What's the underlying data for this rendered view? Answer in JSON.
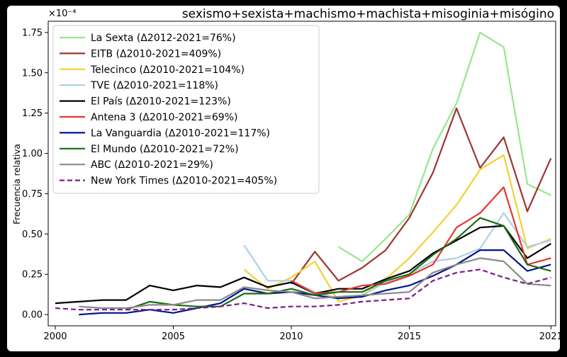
{
  "chart_data": {
    "type": "line",
    "title": "sexismo+sexista+machismo+machista+misoginia+misógino",
    "ylabel": "Frecuencia relativa",
    "xlabel": "",
    "y_exponent_label": "×10⁻⁴",
    "xlim": [
      1999.7,
      2021.2
    ],
    "ylim": [
      -0.07,
      1.82
    ],
    "x_ticks": [
      2000,
      2005,
      2010,
      2015,
      2021
    ],
    "x_tick_labels": [
      "2000",
      "2005",
      "2010",
      "2015",
      "2021"
    ],
    "y_ticks": [
      0.0,
      0.25,
      0.5,
      0.75,
      1.0,
      1.25,
      1.5,
      1.75
    ],
    "y_tick_labels": [
      "0.00",
      "0.25",
      "0.50",
      "0.75",
      "1.00",
      "1.25",
      "1.50",
      "1.75"
    ],
    "grid": false,
    "legend_position": "upper-left",
    "series": [
      {
        "name": "La Sexta (Δ2012-2021=76%)",
        "color": "#98e58c",
        "dash": false,
        "points": [
          [
            2012,
            0.42
          ],
          [
            2013,
            0.33
          ],
          [
            2014,
            0.47
          ],
          [
            2015,
            0.62
          ],
          [
            2016,
            1.03
          ],
          [
            2017,
            1.31
          ],
          [
            2018,
            1.75
          ],
          [
            2019,
            1.66
          ],
          [
            2020,
            0.81
          ],
          [
            2021,
            0.74
          ]
        ]
      },
      {
        "name": "EITB (Δ2010-2021=409%)",
        "color": "#9b3530",
        "dash": false,
        "points": [
          [
            2010,
            0.19
          ],
          [
            2011,
            0.39
          ],
          [
            2012,
            0.21
          ],
          [
            2013,
            0.29
          ],
          [
            2014,
            0.4
          ],
          [
            2015,
            0.6
          ],
          [
            2016,
            0.88
          ],
          [
            2017,
            1.28
          ],
          [
            2018,
            0.91
          ],
          [
            2019,
            1.1
          ],
          [
            2020,
            0.64
          ],
          [
            2021,
            0.97
          ]
        ]
      },
      {
        "name": "Telecinco (Δ2010-2021=104%)",
        "color": "#f5d033",
        "dash": false,
        "points": [
          [
            2008,
            0.28
          ],
          [
            2009,
            0.16
          ],
          [
            2010,
            0.23
          ],
          [
            2011,
            0.33
          ],
          [
            2012,
            0.08
          ],
          [
            2013,
            0.12
          ],
          [
            2014,
            0.22
          ],
          [
            2015,
            0.35
          ],
          [
            2016,
            0.51
          ],
          [
            2017,
            0.68
          ],
          [
            2018,
            0.9
          ],
          [
            2019,
            0.99
          ],
          [
            2020,
            0.41
          ],
          [
            2021,
            0.47
          ]
        ]
      },
      {
        "name": "TVE (Δ2010-2021=118%)",
        "color": "#a9d1e5",
        "dash": false,
        "points": [
          [
            2008,
            0.43
          ],
          [
            2009,
            0.21
          ],
          [
            2010,
            0.21
          ],
          [
            2011,
            0.14
          ],
          [
            2012,
            0.1
          ],
          [
            2013,
            0.12
          ],
          [
            2014,
            0.2
          ],
          [
            2015,
            0.25
          ],
          [
            2016,
            0.33
          ],
          [
            2017,
            0.35
          ],
          [
            2018,
            0.41
          ],
          [
            2019,
            0.63
          ],
          [
            2020,
            0.42
          ],
          [
            2021,
            0.46
          ]
        ]
      },
      {
        "name": "El País (Δ2010-2021=123%)",
        "color": "#000000",
        "dash": false,
        "points": [
          [
            2000,
            0.07
          ],
          [
            2001,
            0.08
          ],
          [
            2002,
            0.09
          ],
          [
            2003,
            0.09
          ],
          [
            2004,
            0.18
          ],
          [
            2005,
            0.15
          ],
          [
            2006,
            0.18
          ],
          [
            2007,
            0.17
          ],
          [
            2008,
            0.23
          ],
          [
            2009,
            0.17
          ],
          [
            2010,
            0.2
          ],
          [
            2011,
            0.13
          ],
          [
            2012,
            0.16
          ],
          [
            2013,
            0.16
          ],
          [
            2014,
            0.22
          ],
          [
            2015,
            0.27
          ],
          [
            2016,
            0.38
          ],
          [
            2017,
            0.46
          ],
          [
            2018,
            0.54
          ],
          [
            2019,
            0.55
          ],
          [
            2020,
            0.35
          ],
          [
            2021,
            0.44
          ]
        ]
      },
      {
        "name": "Antena 3 (Δ2010-2021=69%)",
        "color": "#e5372d",
        "dash": false,
        "points": [
          [
            2010,
            0.21
          ],
          [
            2011,
            0.13
          ],
          [
            2012,
            0.14
          ],
          [
            2013,
            0.18
          ],
          [
            2014,
            0.19
          ],
          [
            2015,
            0.24
          ],
          [
            2016,
            0.31
          ],
          [
            2017,
            0.54
          ],
          [
            2018,
            0.63
          ],
          [
            2019,
            0.79
          ],
          [
            2020,
            0.31
          ],
          [
            2021,
            0.35
          ]
        ]
      },
      {
        "name": "La Vanguardia (Δ2010-2021=117%)",
        "color": "#00158c",
        "dash": false,
        "points": [
          [
            2001,
            0.0
          ],
          [
            2002,
            0.01
          ],
          [
            2003,
            0.01
          ],
          [
            2004,
            0.03
          ],
          [
            2005,
            0.01
          ],
          [
            2006,
            0.04
          ],
          [
            2007,
            0.07
          ],
          [
            2008,
            0.16
          ],
          [
            2009,
            0.13
          ],
          [
            2010,
            0.14
          ],
          [
            2011,
            0.12
          ],
          [
            2012,
            0.1
          ],
          [
            2013,
            0.11
          ],
          [
            2014,
            0.15
          ],
          [
            2015,
            0.18
          ],
          [
            2016,
            0.24
          ],
          [
            2017,
            0.31
          ],
          [
            2018,
            0.4
          ],
          [
            2019,
            0.4
          ],
          [
            2020,
            0.27
          ],
          [
            2021,
            0.31
          ]
        ]
      },
      {
        "name": "El Mundo (Δ2010-2021=72%)",
        "color": "#1a6b12",
        "dash": false,
        "points": [
          [
            2003,
            0.03
          ],
          [
            2004,
            0.08
          ],
          [
            2005,
            0.06
          ],
          [
            2006,
            0.05
          ],
          [
            2007,
            0.05
          ],
          [
            2008,
            0.13
          ],
          [
            2009,
            0.13
          ],
          [
            2010,
            0.16
          ],
          [
            2011,
            0.12
          ],
          [
            2012,
            0.14
          ],
          [
            2013,
            0.14
          ],
          [
            2014,
            0.21
          ],
          [
            2015,
            0.25
          ],
          [
            2016,
            0.37
          ],
          [
            2017,
            0.47
          ],
          [
            2018,
            0.6
          ],
          [
            2019,
            0.55
          ],
          [
            2020,
            0.31
          ],
          [
            2021,
            0.27
          ]
        ]
      },
      {
        "name": "ABC (Δ2010-2021=29%)",
        "color": "#8a8a8a",
        "dash": false,
        "points": [
          [
            2001,
            0.05
          ],
          [
            2002,
            0.04
          ],
          [
            2003,
            0.04
          ],
          [
            2004,
            0.06
          ],
          [
            2005,
            0.06
          ],
          [
            2006,
            0.09
          ],
          [
            2007,
            0.09
          ],
          [
            2008,
            0.17
          ],
          [
            2009,
            0.15
          ],
          [
            2010,
            0.14
          ],
          [
            2011,
            0.1
          ],
          [
            2012,
            0.11
          ],
          [
            2013,
            0.12
          ],
          [
            2014,
            0.13
          ],
          [
            2015,
            0.14
          ],
          [
            2016,
            0.26
          ],
          [
            2017,
            0.31
          ],
          [
            2018,
            0.35
          ],
          [
            2019,
            0.33
          ],
          [
            2020,
            0.19
          ],
          [
            2021,
            0.18
          ]
        ]
      },
      {
        "name": "New York Times (Δ2010-2021=405%)",
        "color": "#7b1e88",
        "dash": true,
        "points": [
          [
            2000,
            0.04
          ],
          [
            2001,
            0.03
          ],
          [
            2002,
            0.03
          ],
          [
            2003,
            0.03
          ],
          [
            2004,
            0.03
          ],
          [
            2005,
            0.03
          ],
          [
            2006,
            0.04
          ],
          [
            2007,
            0.05
          ],
          [
            2008,
            0.07
          ],
          [
            2009,
            0.04
          ],
          [
            2010,
            0.05
          ],
          [
            2011,
            0.05
          ],
          [
            2012,
            0.06
          ],
          [
            2013,
            0.08
          ],
          [
            2014,
            0.09
          ],
          [
            2015,
            0.1
          ],
          [
            2016,
            0.21
          ],
          [
            2017,
            0.26
          ],
          [
            2018,
            0.28
          ],
          [
            2019,
            0.23
          ],
          [
            2020,
            0.19
          ],
          [
            2021,
            0.23
          ]
        ]
      }
    ]
  }
}
